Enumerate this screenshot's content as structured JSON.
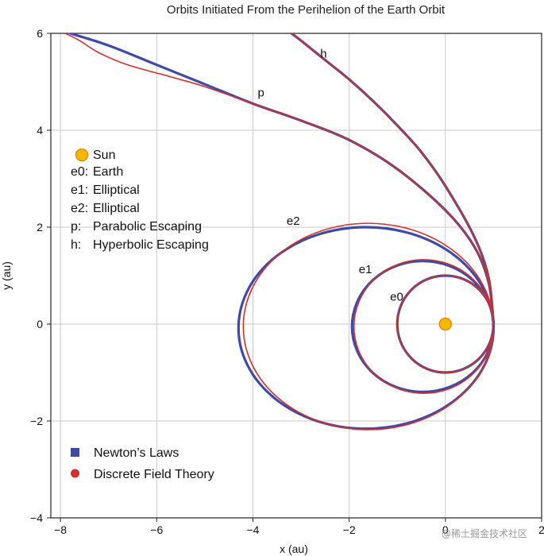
{
  "chart_data": {
    "type": "line",
    "title": "Orbits Initiated From the Perihelion of the Earth Orbit",
    "xlabel": "x (au)",
    "ylabel": "y (au)",
    "xlim": [
      -8.2,
      2.0
    ],
    "ylim": [
      -4.0,
      6.0
    ],
    "xticks": [
      -8,
      -6,
      -4,
      -2,
      0,
      2
    ],
    "yticks": [
      -4,
      -2,
      0,
      2,
      4,
      6
    ],
    "xtick_labels": [
      "−8",
      "−6",
      "−4",
      "−2",
      "0",
      "2"
    ],
    "ytick_labels": [
      "−4",
      "−2",
      "0",
      "2",
      "4",
      "6"
    ],
    "grid": true,
    "colors": {
      "newton": "#3f4aa8",
      "dft": "#d1312a",
      "sun": "#f3b800",
      "sun_edge": "#f08a00",
      "grid": "#c8c8c8"
    },
    "sun": {
      "x": 0.0,
      "y": 0.0,
      "label": "Sun"
    },
    "legend_objects": [
      {
        "key": "e0:",
        "name": "Earth"
      },
      {
        "key": "e1:",
        "name": "Elliptical"
      },
      {
        "key": "e2:",
        "name": "Elliptical"
      },
      {
        "key": "p:",
        "name": "Parabolic Escaping"
      },
      {
        "key": "h:",
        "name": "Hyperbolic Escaping"
      }
    ],
    "legend_position": "upper-left / lower-left",
    "legend_series": [
      {
        "name": "Newton’s Laws",
        "marker": "square"
      },
      {
        "name": "Discrete Field Theory",
        "marker": "circle"
      }
    ],
    "orbit_labels": [
      {
        "text": "e0",
        "x": -1.15,
        "y": 0.48
      },
      {
        "text": "e1",
        "x": -1.8,
        "y": 1.05
      },
      {
        "text": "e2",
        "x": -3.3,
        "y": 2.05
      },
      {
        "text": "p",
        "x": -3.9,
        "y": 4.7
      },
      {
        "text": "h",
        "x": -2.6,
        "y": 5.5
      }
    ],
    "series": [
      {
        "name": "Newton’s Laws",
        "orbits": [
          {
            "id": "e0",
            "kind": "ellipse",
            "cx": 0.0,
            "cy": 0.0,
            "rx": 1.0,
            "ry": 1.0
          },
          {
            "id": "e1",
            "kind": "ellipse",
            "cx": -0.47,
            "cy": -0.05,
            "rx": 1.47,
            "ry": 1.35
          },
          {
            "id": "e2",
            "kind": "ellipse",
            "cx": -1.65,
            "cy": -0.08,
            "rx": 2.65,
            "ry": 2.08
          },
          {
            "id": "p",
            "kind": "curve",
            "points": [
              [
                1.0,
                0.0
              ],
              [
                0.9,
                0.85
              ],
              [
                0.6,
                1.6
              ],
              [
                0.0,
                2.35
              ],
              [
                -1.0,
                3.2
              ],
              [
                -2.0,
                3.8
              ],
              [
                -3.0,
                4.2
              ],
              [
                -4.0,
                4.55
              ],
              [
                -5.0,
                4.95
              ],
              [
                -6.0,
                5.35
              ],
              [
                -7.0,
                5.75
              ],
              [
                -7.8,
                6.0
              ]
            ]
          },
          {
            "id": "h",
            "kind": "curve",
            "points": [
              [
                1.0,
                0.0
              ],
              [
                0.9,
                0.95
              ],
              [
                0.6,
                1.8
              ],
              [
                0.0,
                2.85
              ],
              [
                -0.5,
                3.55
              ],
              [
                -1.0,
                4.1
              ],
              [
                -1.5,
                4.6
              ],
              [
                -2.0,
                5.05
              ],
              [
                -2.5,
                5.45
              ],
              [
                -3.0,
                5.85
              ],
              [
                -3.2,
                6.0
              ]
            ]
          }
        ]
      },
      {
        "name": "Discrete Field Theory",
        "orbits": [
          {
            "id": "e0",
            "kind": "ellipse",
            "cx": 0.0,
            "cy": 0.0,
            "rx": 1.0,
            "ry": 1.0
          },
          {
            "id": "e1",
            "kind": "ellipse",
            "cx": -0.45,
            "cy": -0.05,
            "rx": 1.45,
            "ry": 1.38
          },
          {
            "id": "e2",
            "kind": "ellipse",
            "cx": -1.6,
            "cy": -0.05,
            "rx": 2.6,
            "ry": 2.13
          },
          {
            "id": "p",
            "kind": "curve",
            "points": [
              [
                1.0,
                0.0
              ],
              [
                0.9,
                0.85
              ],
              [
                0.6,
                1.6
              ],
              [
                0.0,
                2.35
              ],
              [
                -1.0,
                3.2
              ],
              [
                -2.0,
                3.8
              ],
              [
                -3.0,
                4.2
              ],
              [
                -4.0,
                4.55
              ],
              [
                -5.0,
                4.9
              ],
              [
                -5.7,
                5.1
              ],
              [
                -6.6,
                5.35
              ],
              [
                -7.2,
                5.6
              ],
              [
                -7.6,
                5.85
              ],
              [
                -7.9,
                6.0
              ]
            ]
          },
          {
            "id": "h",
            "kind": "curve",
            "points": [
              [
                1.0,
                0.0
              ],
              [
                0.9,
                0.95
              ],
              [
                0.6,
                1.8
              ],
              [
                0.0,
                2.85
              ],
              [
                -0.5,
                3.55
              ],
              [
                -1.0,
                4.1
              ],
              [
                -1.5,
                4.6
              ],
              [
                -2.0,
                5.05
              ],
              [
                -2.5,
                5.45
              ],
              [
                -3.0,
                5.85
              ],
              [
                -3.2,
                6.0
              ]
            ]
          }
        ]
      }
    ]
  },
  "watermark": "@稀土掘金技术社区"
}
